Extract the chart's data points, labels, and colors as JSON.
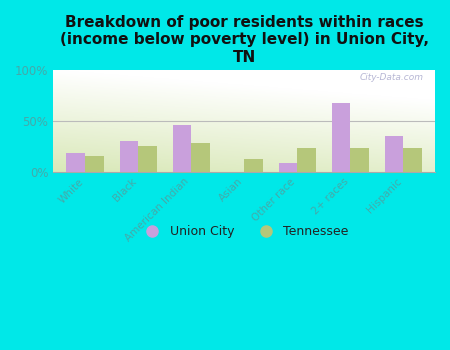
{
  "title": "Breakdown of poor residents within races\n(income below poverty level) in Union City,\nTN",
  "categories": [
    "White",
    "Black",
    "American Indian",
    "Asian",
    "Other race",
    "2+ races",
    "Hispanic"
  ],
  "union_city": [
    18,
    30,
    46,
    0,
    8,
    68,
    35
  ],
  "tennessee": [
    15,
    25,
    28,
    12,
    23,
    23,
    23
  ],
  "union_city_color": "#c9a0dc",
  "tennessee_color": "#b5c77a",
  "background_outer": "#00e8e8",
  "ylabel_ticks": [
    "0%",
    "50%",
    "100%"
  ],
  "yticks": [
    0,
    50,
    100
  ],
  "ylim": [
    0,
    100
  ],
  "bar_width": 0.35,
  "title_fontsize": 11,
  "axis_label_color": "#44aaaa",
  "watermark": "City-Data.com",
  "legend_union_city": "Union City",
  "legend_tennessee": "Tennessee"
}
